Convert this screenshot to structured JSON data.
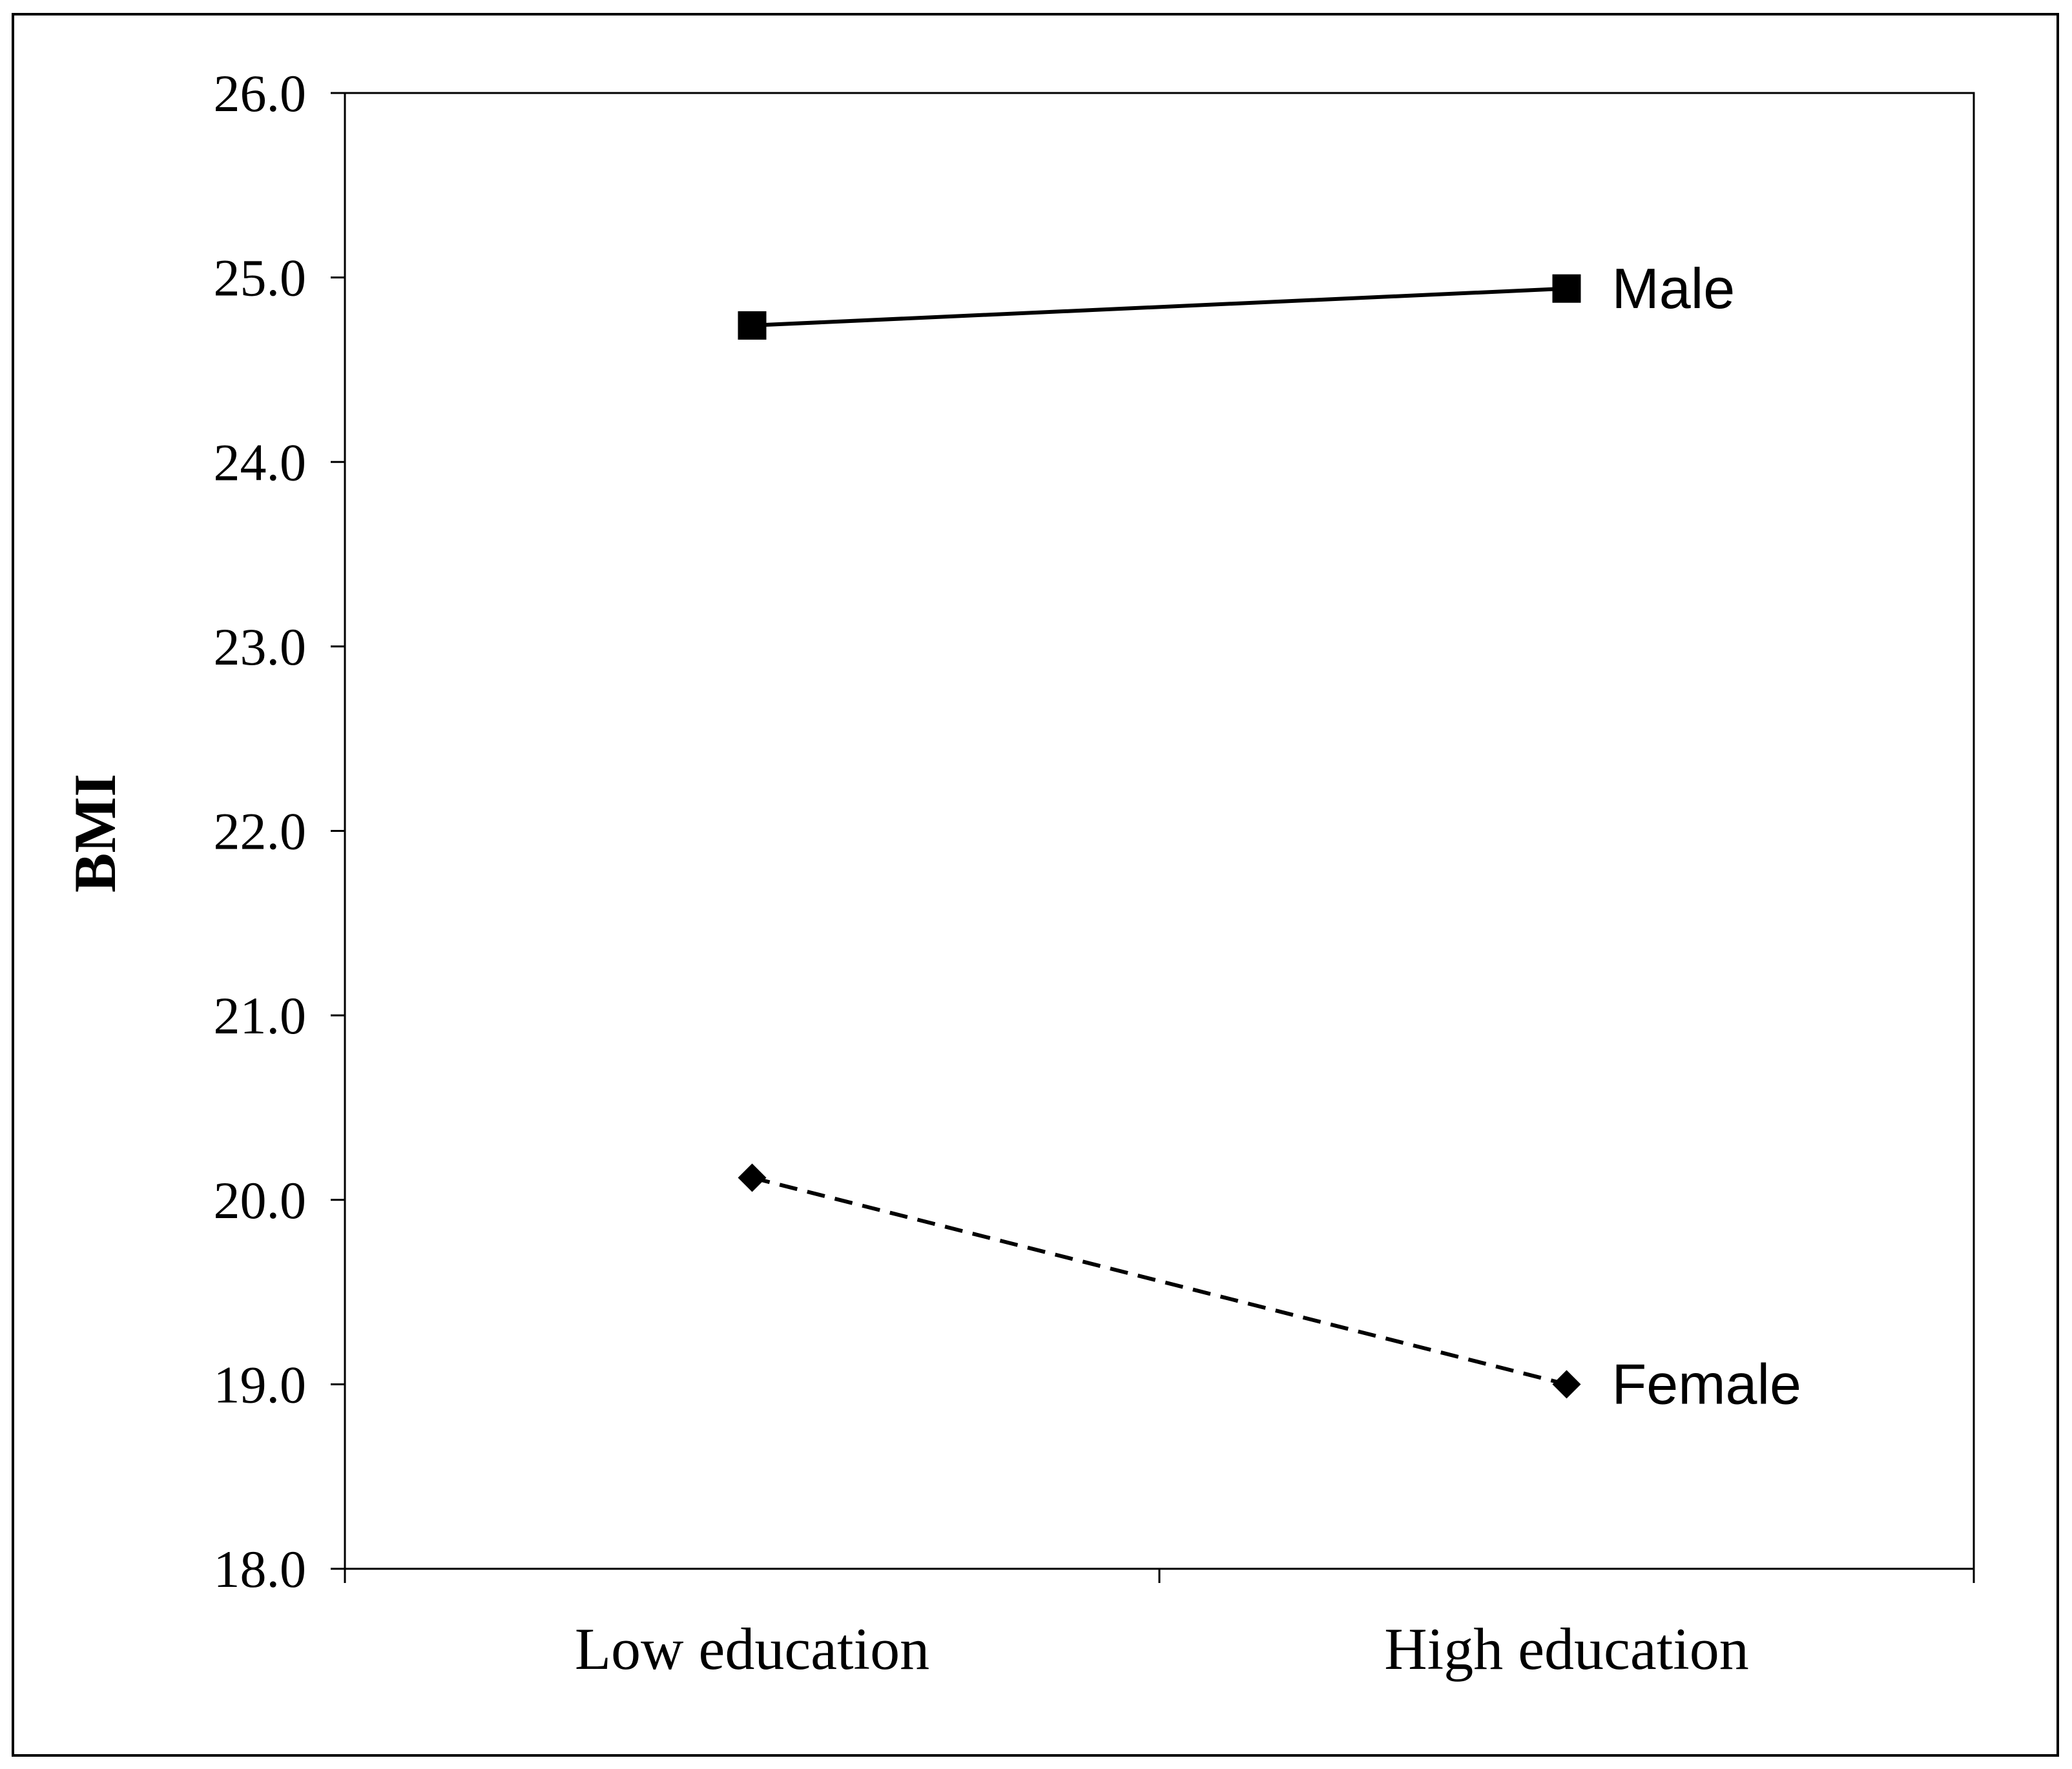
{
  "chart_data": {
    "type": "line",
    "title": "",
    "xlabel": "",
    "ylabel": "BMI",
    "ylim": [
      18.0,
      26.0
    ],
    "yticks": [
      "18.0",
      "19.0",
      "20.0",
      "21.0",
      "22.0",
      "23.0",
      "24.0",
      "25.0",
      "26.0"
    ],
    "categories": [
      "Low education",
      "High education"
    ],
    "grid": false,
    "series": [
      {
        "name": "Male",
        "values": [
          24.74,
          24.94
        ],
        "marker": "square",
        "line_style": "solid",
        "color": "#000000"
      },
      {
        "name": "Female",
        "values": [
          20.12,
          19.0
        ],
        "marker": "diamond",
        "line_style": "dashed",
        "color": "#000000"
      }
    ]
  }
}
